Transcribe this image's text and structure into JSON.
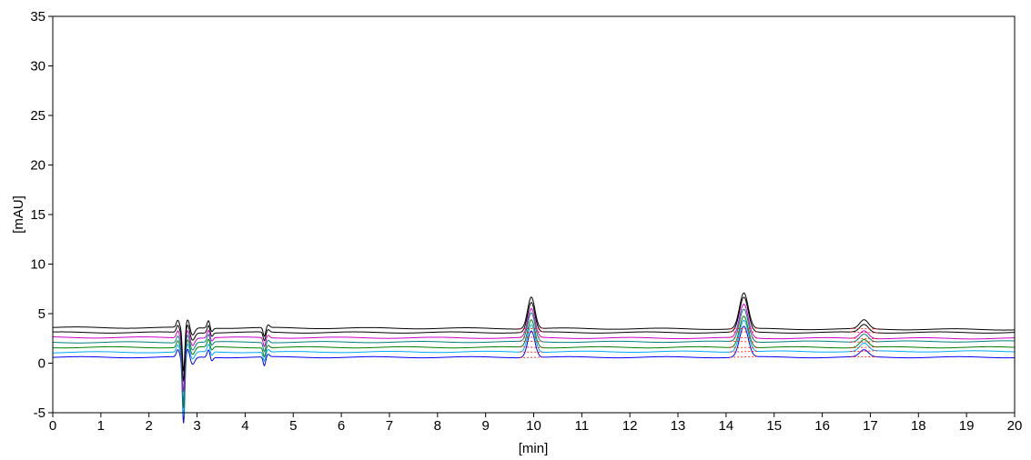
{
  "chart_data": {
    "type": "line",
    "title": "",
    "xlabel": "[min]",
    "ylabel": "[mAU]",
    "xlim": [
      0,
      20
    ],
    "ylim": [
      -5,
      35
    ],
    "x_ticks": [
      0,
      1,
      2,
      3,
      4,
      5,
      6,
      7,
      8,
      9,
      10,
      11,
      12,
      13,
      14,
      15,
      16,
      17,
      18,
      19,
      20
    ],
    "y_ticks": [
      -5,
      0,
      5,
      10,
      15,
      20,
      25,
      30,
      35
    ],
    "grid": false,
    "legend": false,
    "peaks": [
      {
        "rt": 9.95,
        "width": 0.075
      },
      {
        "rt": 14.37,
        "width": 0.09
      },
      {
        "rt": 16.87,
        "width": 0.09
      }
    ],
    "series": [
      {
        "color": "#000000",
        "baseline_start": 3.6,
        "baseline_end": 3.4,
        "peak_heights": [
          3.2,
          3.6,
          0.9
        ],
        "dip_depth": 4.5
      },
      {
        "color": "#000000",
        "baseline_start": 3.1,
        "baseline_end": 3.1,
        "peak_heights": [
          3.0,
          3.5,
          0.8
        ],
        "dip_depth": 5.0
      },
      {
        "color": "#cc00cc",
        "baseline_start": 2.6,
        "baseline_end": 2.5,
        "peak_heights": [
          2.9,
          3.4,
          0.8
        ],
        "dip_depth": 5.5
      },
      {
        "color": "#008080",
        "baseline_start": 2.1,
        "baseline_end": 2.2,
        "peak_heights": [
          2.9,
          3.3,
          0.8
        ],
        "dip_depth": 6.0
      },
      {
        "color": "#008000",
        "baseline_start": 1.6,
        "baseline_end": 1.6,
        "peak_heights": [
          2.8,
          3.2,
          0.8
        ],
        "dip_depth": 6.2
      },
      {
        "color": "#00aaff",
        "baseline_start": 1.1,
        "baseline_end": 1.2,
        "peak_heights": [
          2.8,
          3.2,
          0.8
        ],
        "dip_depth": 6.5
      },
      {
        "color": "#0000ff",
        "baseline_start": 0.6,
        "baseline_end": 0.6,
        "peak_heights": [
          2.7,
          3.1,
          0.7
        ],
        "dip_depth": 6.8
      }
    ],
    "integration_marker_color": "#ff0000"
  }
}
